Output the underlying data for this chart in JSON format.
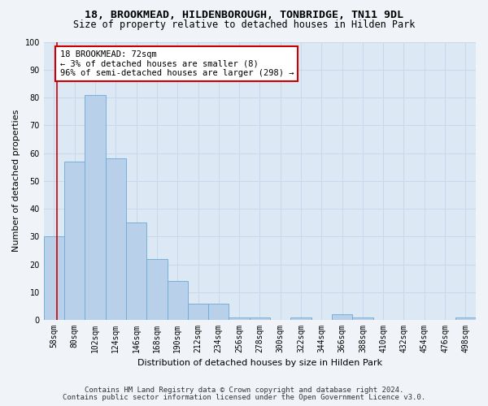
{
  "title": "18, BROOKMEAD, HILDENBOROUGH, TONBRIDGE, TN11 9DL",
  "subtitle": "Size of property relative to detached houses in Hilden Park",
  "xlabel": "Distribution of detached houses by size in Hilden Park",
  "ylabel": "Number of detached properties",
  "categories": [
    "58sqm",
    "80sqm",
    "102sqm",
    "124sqm",
    "146sqm",
    "168sqm",
    "190sqm",
    "212sqm",
    "234sqm",
    "256sqm",
    "278sqm",
    "300sqm",
    "322sqm",
    "344sqm",
    "366sqm",
    "388sqm",
    "410sqm",
    "432sqm",
    "454sqm",
    "476sqm",
    "498sqm"
  ],
  "values": [
    30,
    57,
    81,
    58,
    35,
    22,
    14,
    6,
    6,
    1,
    1,
    0,
    1,
    0,
    2,
    1,
    0,
    0,
    0,
    0,
    1
  ],
  "bar_color": "#b8d0ea",
  "bar_edge_color": "#6aaad4",
  "grid_color": "#c8d8ec",
  "bg_color": "#dce8f4",
  "fig_bg_color": "#f0f4f8",
  "annotation_text": "18 BROOKMEAD: 72sqm\n← 3% of detached houses are smaller (8)\n96% of semi-detached houses are larger (298) →",
  "annotation_box_color": "#ffffff",
  "annotation_box_edge_color": "#cc0000",
  "vline_color": "#cc0000",
  "ylim": [
    0,
    100
  ],
  "yticks": [
    0,
    10,
    20,
    30,
    40,
    50,
    60,
    70,
    80,
    90,
    100
  ],
  "footer_line1": "Contains HM Land Registry data © Crown copyright and database right 2024.",
  "footer_line2": "Contains public sector information licensed under the Open Government Licence v3.0.",
  "title_fontsize": 9.5,
  "subtitle_fontsize": 8.5,
  "tick_fontsize": 7,
  "label_fontsize": 8,
  "annotation_fontsize": 7.5,
  "footer_fontsize": 6.5
}
